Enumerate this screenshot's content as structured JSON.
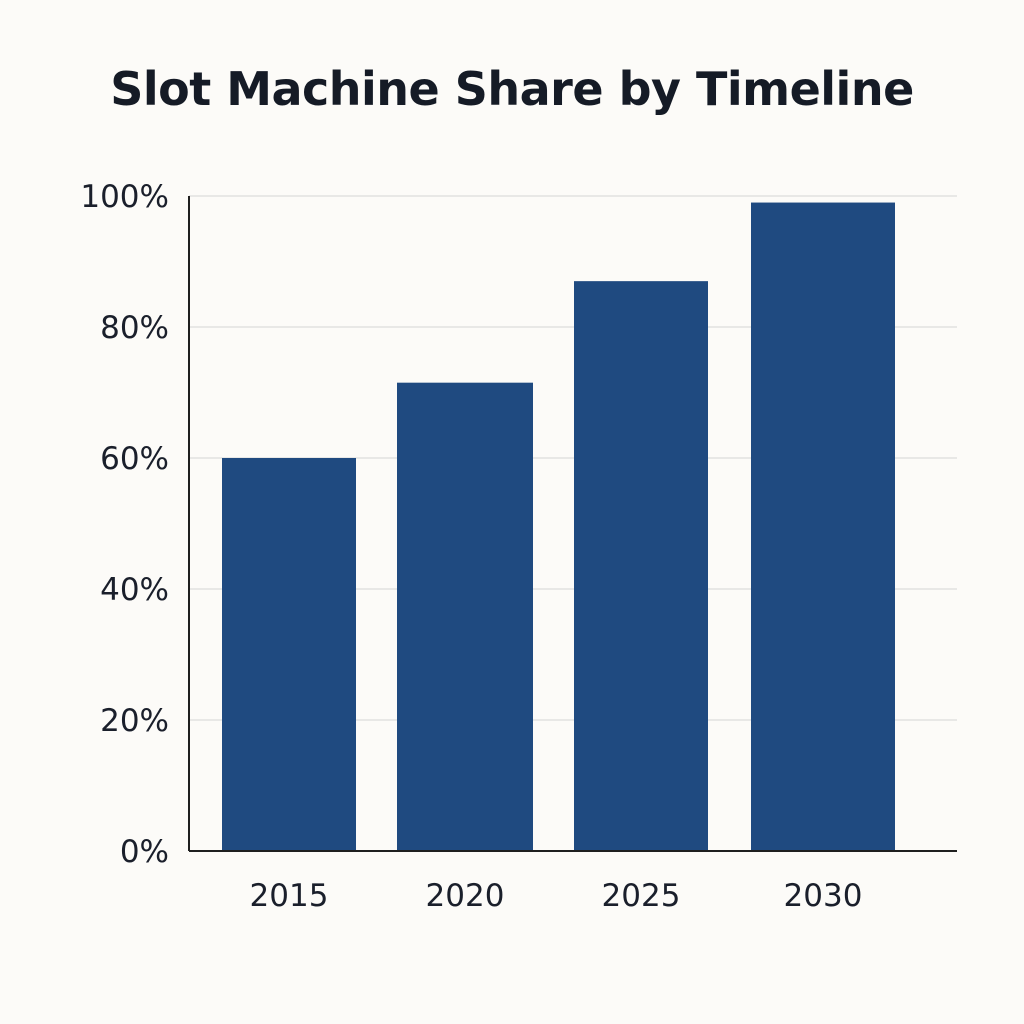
{
  "chart_data": {
    "type": "bar",
    "title": "Slot Machine Share by Timeline",
    "xlabel": "",
    "ylabel": "",
    "categories": [
      "2015",
      "2020",
      "2025",
      "2030"
    ],
    "values": [
      60,
      71.5,
      87,
      99
    ],
    "ylim": [
      0,
      100
    ],
    "yticks": [
      0,
      20,
      40,
      60,
      80,
      100
    ],
    "ytick_labels": [
      "0%",
      "20%",
      "40%",
      "60%",
      "80%",
      "100%"
    ],
    "bar_color": "#1f4a80",
    "grid": true,
    "legend": "none"
  }
}
